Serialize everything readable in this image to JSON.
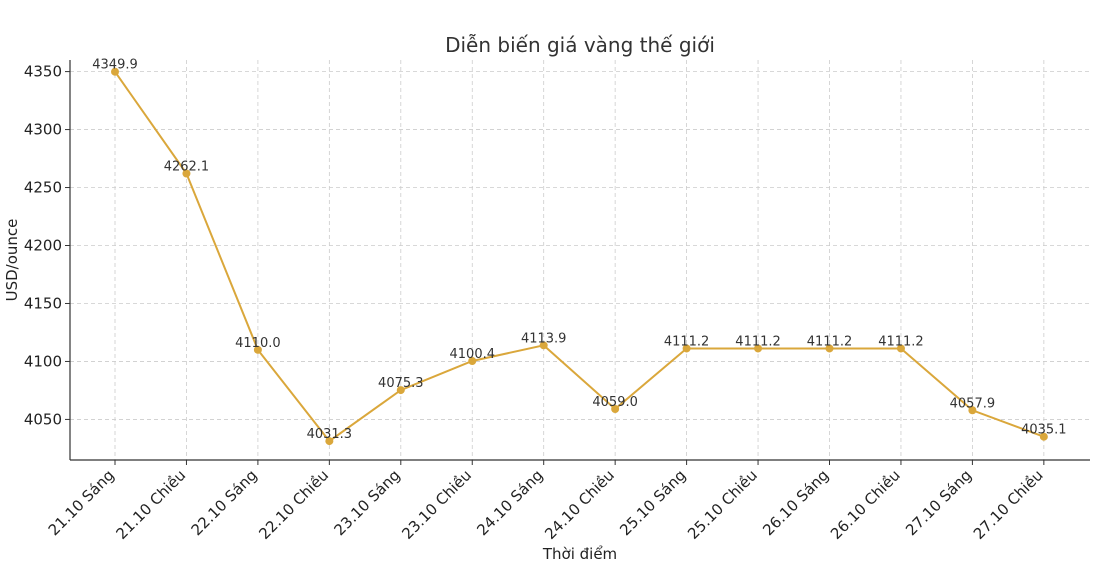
{
  "chart_data": {
    "type": "line",
    "title": "Diễn biến giá vàng thế giới",
    "xlabel": "Thời điểm",
    "ylabel": "USD/ounce",
    "categories": [
      "21.10 Sáng",
      "21.10 Chiều",
      "22.10 Sáng",
      "22.10 Chiều",
      "23.10 Sáng",
      "23.10 Chiều",
      "24.10 Sáng",
      "24.10 Chiều",
      "25.10 Sáng",
      "25.10 Chiều",
      "26.10 Sáng",
      "26.10 Chiều",
      "27.10 Sáng",
      "27.10 Chiều"
    ],
    "series": [
      {
        "values": [
          4349.9,
          4262.1,
          4110.0,
          4031.3,
          4075.3,
          4100.4,
          4113.9,
          4059.0,
          4111.2,
          4111.2,
          4111.2,
          4111.2,
          4057.9,
          4035.1
        ],
        "labels": [
          "4349.9",
          "4262.1",
          "4110.0",
          "4031.3",
          "4075.3",
          "4100.4",
          "4113.9",
          "4059.0",
          "4111.2",
          "4111.2",
          "4111.2",
          "4111.2",
          "4057.9",
          "4035.1"
        ],
        "color": "#DAA73B"
      }
    ],
    "ylim": [
      4015,
      4360
    ],
    "yticks": [
      4050,
      4100,
      4150,
      4200,
      4250,
      4300,
      4350
    ],
    "grid": true,
    "legend": false
  }
}
